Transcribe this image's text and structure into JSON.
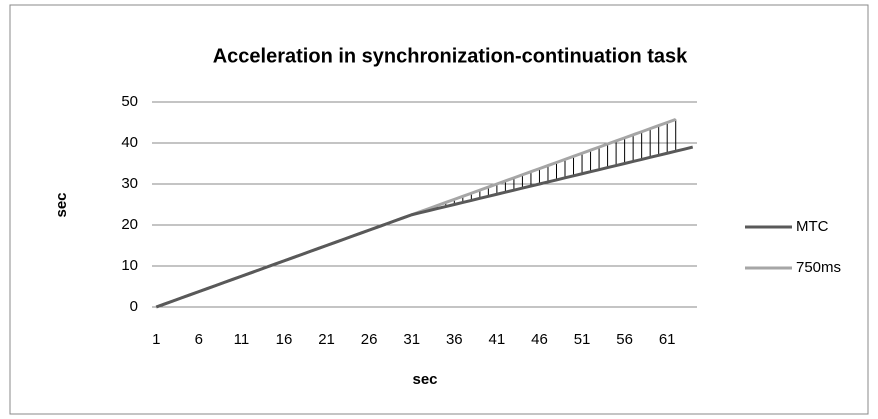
{
  "chart_data": {
    "type": "line",
    "title": "Acceleration in synchronization-continuation task",
    "x_label": "sec",
    "y_label": "sec",
    "categories": [
      1,
      null,
      null,
      null,
      null,
      6,
      null,
      null,
      null,
      null,
      11,
      null,
      null,
      null,
      null,
      16,
      null,
      null,
      null,
      null,
      21,
      null,
      null,
      null,
      null,
      26,
      null,
      null,
      null,
      null,
      31,
      null,
      null,
      null,
      null,
      36,
      null,
      null,
      null,
      null,
      41,
      null,
      null,
      null,
      null,
      46,
      null,
      null,
      null,
      null,
      51,
      null,
      null,
      null,
      null,
      56,
      null,
      null,
      null,
      null,
      61,
      null,
      null,
      null
    ],
    "series": [
      {
        "name": "MTC",
        "color": "#595959",
        "values": [
          0,
          0.75,
          1.5,
          2.25,
          3,
          3.75,
          4.5,
          5.25,
          6,
          6.75,
          7.5,
          8.25,
          9,
          9.75,
          10.5,
          11.25,
          12,
          12.75,
          13.5,
          14.25,
          15,
          15.75,
          16.5,
          17.25,
          18,
          18.75,
          19.5,
          20.25,
          21,
          21.75,
          22.5,
          23,
          23.5,
          24,
          24.5,
          25,
          25.5,
          26,
          26.5,
          27,
          27.5,
          28,
          28.5,
          29,
          29.5,
          30,
          30.5,
          31,
          31.5,
          32,
          32.5,
          33,
          33.5,
          34,
          34.5,
          35,
          35.5,
          36,
          36.5,
          37,
          37.5,
          38,
          38.5,
          39
        ]
      },
      {
        "name": "750ms",
        "color": "#a6a6a6",
        "values": [
          0,
          0.75,
          1.5,
          2.25,
          3,
          3.75,
          4.5,
          5.25,
          6,
          6.75,
          7.5,
          8.25,
          9,
          9.75,
          10.5,
          11.25,
          12,
          12.75,
          13.5,
          14.25,
          15,
          15.75,
          16.5,
          17.25,
          18,
          18.75,
          19.5,
          20.25,
          21,
          21.75,
          22.5,
          23.25,
          24,
          24.75,
          25.5,
          26.25,
          27,
          27.75,
          28.5,
          29.25,
          30,
          30.75,
          31.5,
          32.25,
          33,
          33.75,
          34.5,
          35.25,
          36,
          36.75,
          37.5,
          38.25,
          39,
          39.75,
          40.5,
          41.25,
          42,
          42.75,
          43.5,
          44.25,
          45,
          45.75,
          null,
          null
        ]
      }
    ],
    "ylim": [
      0,
      50
    ],
    "yticks": [
      0,
      10,
      20,
      30,
      40,
      50
    ],
    "grid": true,
    "high_low_lines": true,
    "legend": "right"
  }
}
